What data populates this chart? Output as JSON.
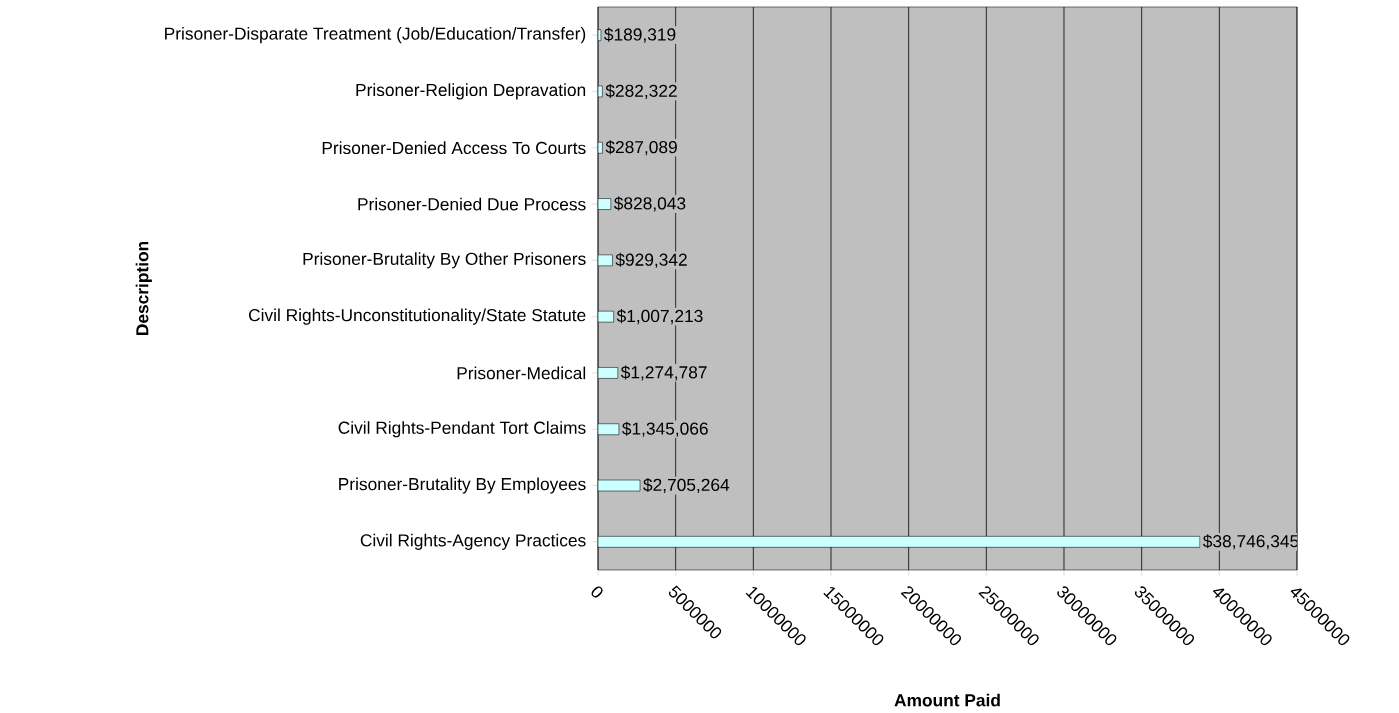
{
  "chart_data": {
    "type": "bar",
    "orientation": "horizontal",
    "xlabel": "Amount Paid",
    "ylabel": "Description",
    "categories": [
      "Prisoner-Disparate Treatment (Job/Education/Transfer)",
      "Prisoner-Religion Depravation",
      "Prisoner-Denied Access To Courts",
      "Prisoner-Denied Due Process",
      "Prisoner-Brutality By Other Prisoners",
      "Civil Rights-Unconstitutionality/State Statute",
      "Prisoner-Medical",
      "Civil Rights-Pendant Tort Claims",
      "Prisoner-Brutality By Employees",
      "Civil Rights-Agency Practices"
    ],
    "values": [
      189319,
      282322,
      287089,
      828043,
      929342,
      1007213,
      1274787,
      1345066,
      2705264,
      38746345
    ],
    "value_labels": [
      "$189,319",
      "$282,322",
      "$287,089",
      "$828,043",
      "$929,342",
      "$1,007,213",
      "$1,274,787",
      "$1,345,066",
      "$2,705,264",
      "$38,746,345"
    ],
    "color": "#ccffff",
    "xlim": [
      0,
      45000000
    ],
    "xticks": [
      0,
      5000000,
      10000000,
      15000000,
      20000000,
      25000000,
      30000000,
      35000000,
      40000000,
      45000000
    ],
    "grid": "x"
  }
}
